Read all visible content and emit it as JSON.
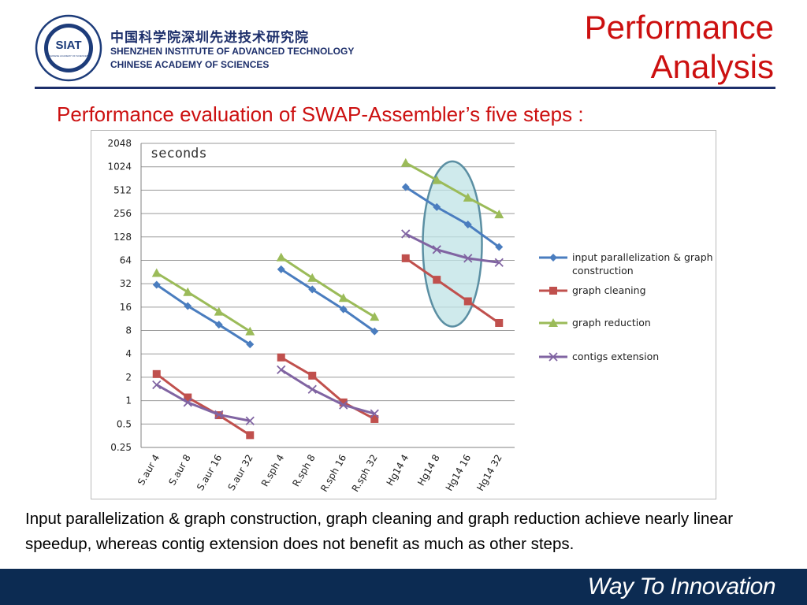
{
  "header": {
    "logo_text": "SIAT",
    "logo_ring_text": "中国科学院深圳先进技术研究院",
    "logo_small_text": "CHINESE ACADEMY OF SCIENCES",
    "org_name_cn": "中国科学院深圳先进技术研究院",
    "org_name_en_line1": "SHENZHEN INSTITUTE OF ADVANCED TECHNOLOGY",
    "org_name_en_line2": "CHINESE ACADEMY OF SCIENCES"
  },
  "title": {
    "line1": "Performance",
    "line2": "Analysis"
  },
  "subtitle": "Performance evaluation of SWAP-Assembler’s five steps :",
  "caption": "Input parallelization & graph construction, graph cleaning and graph reduction achieve nearly linear speedup, whereas contig extension does not benefit as much as other steps.",
  "footer": {
    "slogan": "Way To Innovation"
  },
  "colors": {
    "accent_red": "#cc1010",
    "navy": "#1d2f6b",
    "footer_bg": "#0c2b52"
  },
  "chart_data": {
    "type": "line",
    "title": "",
    "ylabel": "seconds",
    "xlabel": "",
    "y_scale": "log2",
    "ylim": [
      0.25,
      2048
    ],
    "y_ticks": [
      0.25,
      0.5,
      1,
      2,
      4,
      8,
      16,
      32,
      64,
      128,
      256,
      512,
      1024,
      2048
    ],
    "y_tick_labels": [
      "0.25",
      "0.5",
      "1",
      "2",
      "4",
      "8",
      "16",
      "32",
      "64",
      "128",
      "256",
      "512",
      "1024",
      "2048"
    ],
    "grid": true,
    "legend_position": "right",
    "categories": [
      "S.aur 4",
      "S.aur 8",
      "S.aur 16",
      "S.aur 32",
      "R.sph 4",
      "R.sph 8",
      "R.sph 16",
      "R.sph 32",
      "Hg14 4",
      "Hg14 8",
      "Hg14 16",
      "Hg14 32"
    ],
    "groups": [
      {
        "name": "S.aur",
        "category_indices": [
          0,
          1,
          2,
          3
        ]
      },
      {
        "name": "R.sph",
        "category_indices": [
          4,
          5,
          6,
          7
        ]
      },
      {
        "name": "Hg14",
        "category_indices": [
          8,
          9,
          10,
          11
        ]
      }
    ],
    "series": [
      {
        "name": "input parallelization & graph construction",
        "color": "#4a7dbf",
        "marker": "diamond",
        "values": [
          31,
          16.5,
          9.5,
          5.3,
          49,
          27,
          15,
          7.8,
          560,
          310,
          185,
          95
        ]
      },
      {
        "name": "graph cleaning",
        "color": "#c0504d",
        "marker": "square",
        "values": [
          2.2,
          1.1,
          0.65,
          0.36,
          3.6,
          2.1,
          0.95,
          0.58,
          68,
          36,
          19,
          10
        ]
      },
      {
        "name": "graph reduction",
        "color": "#9bbb59",
        "marker": "triangle",
        "values": [
          44,
          25,
          14,
          7.8,
          70,
          38,
          21,
          12,
          1150,
          690,
          410,
          250
        ]
      },
      {
        "name": "contigs extension",
        "color": "#8064a2",
        "marker": "x",
        "values": [
          1.6,
          0.95,
          0.66,
          0.55,
          2.5,
          1.4,
          0.88,
          0.68,
          140,
          88,
          68,
          60
        ]
      }
    ],
    "annotations": [
      {
        "type": "ellipse-highlight",
        "target_group": "Hg14",
        "target_categories": [
          1,
          2
        ],
        "fill": "#bfe3e6",
        "stroke": "#5b8fa3"
      }
    ]
  }
}
